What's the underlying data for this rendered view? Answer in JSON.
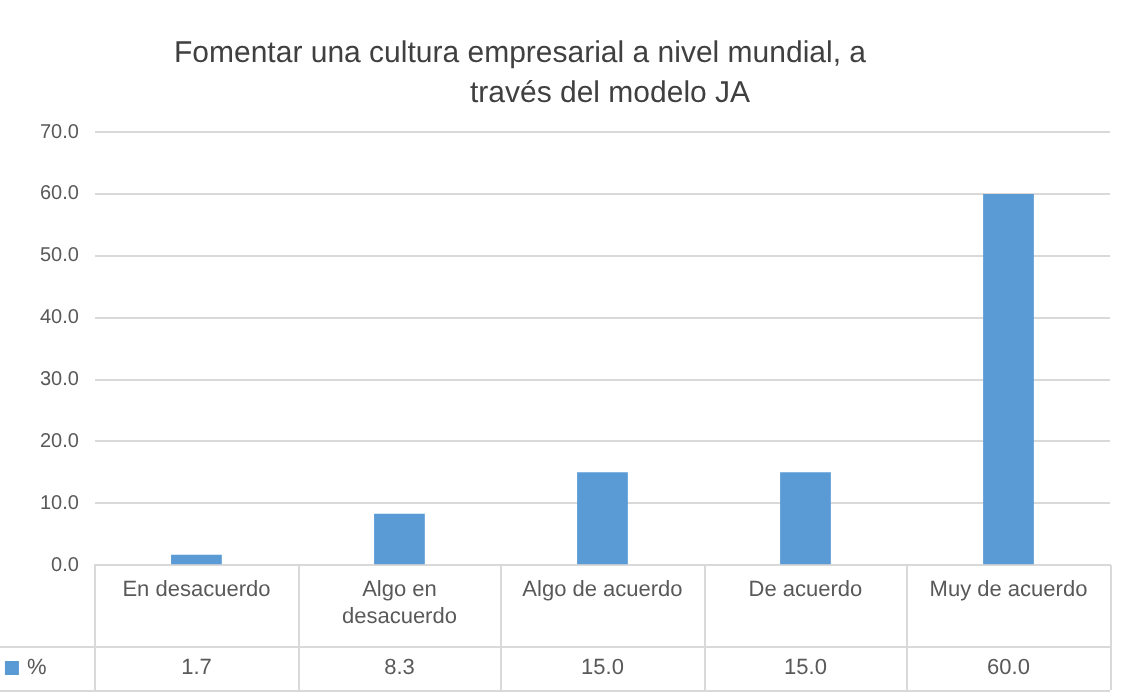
{
  "chart_data": {
    "type": "bar",
    "title": "Fomentar una cultura empresarial a nivel mundial, a través del modelo JA",
    "categories": [
      "En desacuerdo",
      "Algo en desacuerdo",
      "Algo de acuerdo",
      "De acuerdo",
      "Muy de acuerdo"
    ],
    "series": [
      {
        "name": "%",
        "color": "#5b9bd5",
        "values": [
          1.7,
          8.3,
          15.0,
          15.0,
          60.0
        ],
        "value_labels": [
          "1.7",
          "8.3",
          "15.0",
          "15.0",
          "60.0"
        ]
      }
    ],
    "ylim": [
      0,
      70
    ],
    "yticks": [
      {
        "value": 0,
        "label": "0.0"
      },
      {
        "value": 10,
        "label": "10.0"
      },
      {
        "value": 20,
        "label": "20.0"
      },
      {
        "value": 30,
        "label": "30.0"
      },
      {
        "value": 40,
        "label": "40.0"
      },
      {
        "value": 50,
        "label": "50.0"
      },
      {
        "value": 60,
        "label": "60.0"
      },
      {
        "value": 70,
        "label": "70.0"
      }
    ],
    "grid": "y",
    "legend": "bottom"
  }
}
